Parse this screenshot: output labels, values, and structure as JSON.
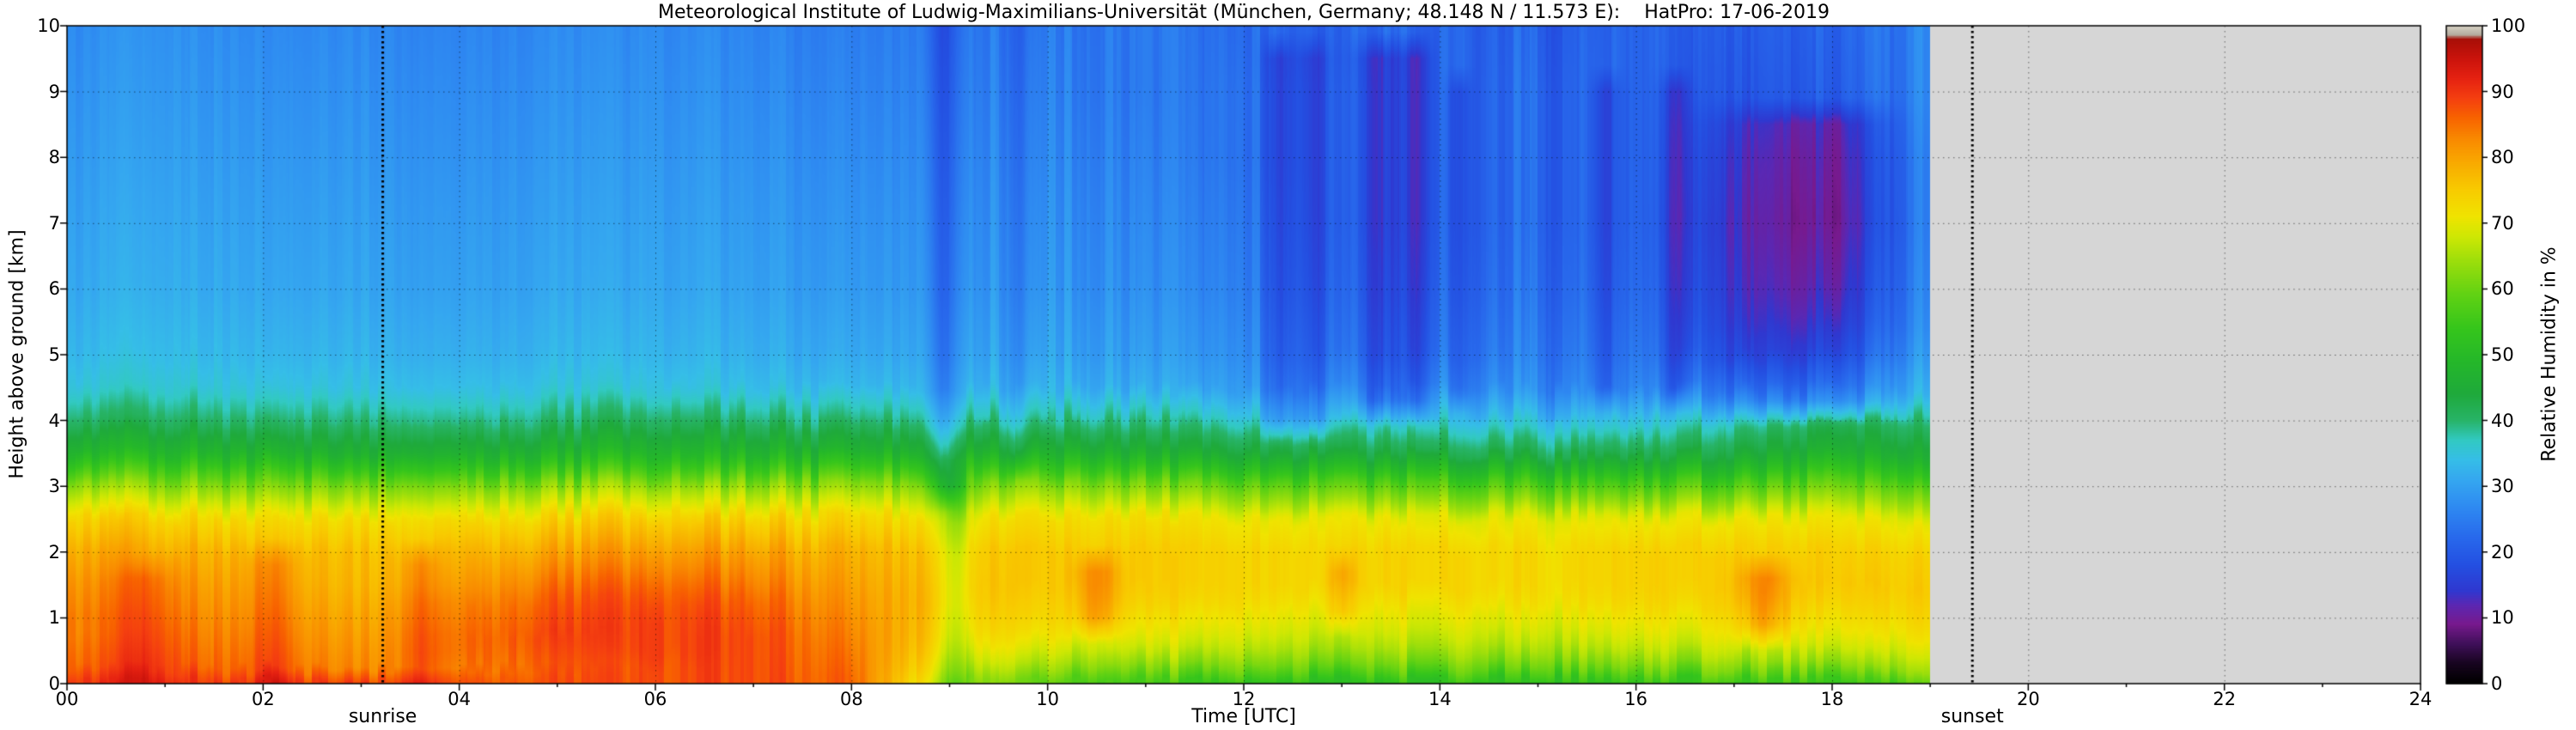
{
  "chart_data": {
    "type": "heatmap",
    "title": "Meteorological Institute of Ludwig-Maximilians-Universität (München, Germany; 48.148 N / 11.573 E):    HatPro: 17-06-2019",
    "xlabel": "Time [UTC]",
    "ylabel": "Height above ground [km]",
    "colorbar_label": "Relative Humidity in %",
    "x_range": [
      0,
      24
    ],
    "y_range": [
      0,
      10
    ],
    "grid": true,
    "x_tick_values": [
      0,
      2,
      4,
      6,
      8,
      10,
      12,
      14,
      16,
      18,
      20,
      22,
      24
    ],
    "x_tick_labels": [
      "00",
      "02",
      "04",
      "06",
      "08",
      "10",
      "12",
      "14",
      "16",
      "18",
      "20",
      "22",
      "24"
    ],
    "y_tick_values": [
      0,
      1,
      2,
      3,
      4,
      5,
      6,
      7,
      8,
      9,
      10
    ],
    "y_tick_labels": [
      "0",
      "1",
      "2",
      "3",
      "4",
      "5",
      "6",
      "7",
      "8",
      "9",
      "10"
    ],
    "colorbar_tick_values": [
      0,
      10,
      20,
      30,
      40,
      50,
      60,
      70,
      80,
      90,
      100
    ],
    "annotations": {
      "sunrise": {
        "time_utc": 3.22,
        "label": "sunrise"
      },
      "sunset": {
        "time_utc": 19.43,
        "label": "sunset"
      }
    },
    "data_end_time_utc": 19.0,
    "no_data_color": "#d6d6d6",
    "colormap_stops": [
      [
        0,
        "#000000"
      ],
      [
        3,
        "#180520"
      ],
      [
        6,
        "#40105a"
      ],
      [
        9,
        "#781a8e"
      ],
      [
        12,
        "#5a28b4"
      ],
      [
        14,
        "#3038d0"
      ],
      [
        18,
        "#2450e2"
      ],
      [
        22,
        "#2868ec"
      ],
      [
        27,
        "#2f8cf2"
      ],
      [
        31,
        "#35a8f0"
      ],
      [
        34,
        "#36bee8"
      ],
      [
        37,
        "#32cac2"
      ],
      [
        40,
        "#28b468"
      ],
      [
        44,
        "#1faa3c"
      ],
      [
        49,
        "#25b82a"
      ],
      [
        54,
        "#36c61c"
      ],
      [
        59,
        "#60d214"
      ],
      [
        64,
        "#9ade0c"
      ],
      [
        68,
        "#cfe804"
      ],
      [
        71,
        "#f0e400"
      ],
      [
        75,
        "#f8cc00"
      ],
      [
        79,
        "#f9ac00"
      ],
      [
        83,
        "#f98800"
      ],
      [
        86,
        "#f86400"
      ],
      [
        89,
        "#f54010"
      ],
      [
        92,
        "#e62212"
      ],
      [
        95,
        "#cc140c"
      ],
      [
        98,
        "#a80f08"
      ],
      [
        98.7,
        "#b4ac9e"
      ],
      [
        100,
        "#d8d2c6"
      ]
    ],
    "times_utc": [
      0,
      1,
      2,
      3,
      4,
      5,
      6,
      7,
      8,
      9,
      10,
      11,
      12,
      13,
      14,
      15,
      16,
      17,
      18,
      19
    ],
    "heights_km": [
      0,
      0.25,
      0.5,
      0.75,
      1,
      1.25,
      1.5,
      2,
      2.5,
      3,
      3.25,
      3.5,
      4,
      4.5,
      5,
      5.5,
      6,
      7,
      8,
      9,
      10
    ],
    "rh_percent": [
      [
        90,
        90,
        90,
        90,
        88,
        88,
        88,
        88,
        86,
        66,
        58,
        55,
        53,
        52,
        52,
        52,
        53,
        54,
        55,
        56
      ],
      [
        86,
        87,
        85,
        83,
        84,
        87,
        88,
        88,
        85,
        70,
        64,
        62,
        61,
        60,
        60,
        60,
        61,
        62,
        63,
        64
      ],
      [
        85,
        86,
        84,
        82,
        85,
        88,
        89,
        88,
        84,
        73,
        68,
        67,
        66,
        65,
        65,
        65,
        66,
        67,
        68,
        68
      ],
      [
        84,
        85,
        83,
        81,
        85,
        89,
        89,
        88,
        83,
        75,
        71,
        70,
        69,
        68,
        68,
        68,
        69,
        70,
        71,
        71
      ],
      [
        84,
        84,
        82,
        80,
        84,
        88,
        89,
        87,
        82,
        76,
        73,
        72,
        71,
        70,
        70,
        70,
        71,
        72,
        73,
        73
      ],
      [
        83,
        83,
        81,
        79,
        83,
        87,
        88,
        86,
        81,
        77,
        74,
        74,
        73,
        72,
        72,
        72,
        73,
        74,
        75,
        74
      ],
      [
        82,
        82,
        80,
        78,
        81,
        85,
        86,
        84,
        80,
        77,
        75,
        75,
        74,
        74,
        74,
        73,
        74,
        75,
        76,
        75
      ],
      [
        79,
        79,
        78,
        77,
        78,
        80,
        81,
        80,
        78,
        76,
        75,
        75,
        74,
        74,
        74,
        73,
        74,
        75,
        75,
        74
      ],
      [
        74,
        74,
        73,
        73,
        73,
        74,
        75,
        74,
        73,
        72,
        72,
        72,
        71,
        71,
        70,
        70,
        70,
        71,
        71,
        70
      ],
      [
        63,
        63,
        62,
        62,
        62,
        63,
        64,
        63,
        62,
        62,
        62,
        61,
        60,
        59,
        58,
        57,
        57,
        58,
        60,
        59
      ],
      [
        55,
        56,
        55,
        54,
        54,
        55,
        56,
        55,
        54,
        54,
        54,
        53,
        52,
        51,
        50,
        49,
        49,
        50,
        53,
        52
      ],
      [
        48,
        49,
        48,
        47,
        47,
        48,
        49,
        48,
        47,
        47,
        47,
        46,
        45,
        44,
        43,
        42,
        42,
        44,
        47,
        46
      ],
      [
        40,
        41,
        40,
        40,
        39,
        40,
        41,
        40,
        39,
        39,
        38,
        38,
        37,
        36,
        35,
        34,
        34,
        37,
        41,
        40
      ],
      [
        35,
        36,
        35,
        35,
        34,
        35,
        35,
        34,
        33,
        33,
        32,
        31,
        30,
        29,
        28,
        27,
        26,
        26,
        31,
        32
      ],
      [
        33,
        34,
        33,
        33,
        32,
        33,
        33,
        32,
        31,
        31,
        30,
        29,
        28,
        26,
        25,
        25,
        24,
        20,
        25,
        29
      ],
      [
        32,
        33,
        32,
        32,
        31,
        32,
        32,
        31,
        30,
        30,
        29,
        28,
        27,
        25,
        24,
        24,
        23,
        18,
        22,
        27
      ],
      [
        31,
        32,
        31,
        31,
        30,
        31,
        31,
        30,
        29,
        29,
        28,
        27,
        26,
        24,
        23,
        23,
        22,
        17,
        20,
        26
      ],
      [
        30,
        31,
        30,
        30,
        29,
        30,
        30,
        29,
        28,
        28,
        27,
        26,
        25,
        23,
        22,
        22,
        21,
        16,
        18,
        25
      ],
      [
        29,
        30,
        29,
        29,
        28,
        29,
        29,
        28,
        27,
        27,
        26,
        25,
        24,
        23,
        22,
        22,
        21,
        17,
        19,
        25
      ],
      [
        28,
        29,
        28,
        28,
        27,
        28,
        28,
        27,
        26,
        26,
        25,
        24,
        24,
        23,
        22,
        22,
        21,
        19,
        21,
        26
      ],
      [
        27,
        28,
        27,
        27,
        26,
        27,
        27,
        26,
        25,
        25,
        24,
        24,
        23,
        22,
        22,
        21,
        21,
        20,
        22,
        26
      ]
    ],
    "streak_anomalies": [
      {
        "t": 8.95,
        "w": 0.1,
        "hmin": 3.0,
        "hmax": 10.0,
        "dv": -8
      },
      {
        "t": 9.05,
        "w": 0.12,
        "hmin": 0.0,
        "hmax": 3.0,
        "dv": -9
      },
      {
        "t": 9.7,
        "w": 0.08,
        "hmin": 3.5,
        "hmax": 10.0,
        "dv": -5
      },
      {
        "t": 12.35,
        "w": 0.1,
        "hmin": 4.0,
        "hmax": 9.5,
        "dv": -7
      },
      {
        "t": 12.7,
        "w": 0.12,
        "hmin": 4.0,
        "hmax": 9.5,
        "dv": -6
      },
      {
        "t": 13.4,
        "w": 0.18,
        "hmin": 4.3,
        "hmax": 9.5,
        "dv": -8
      },
      {
        "t": 13.75,
        "w": 0.1,
        "hmin": 4.3,
        "hmax": 9.5,
        "dv": -7
      },
      {
        "t": 14.2,
        "w": 0.08,
        "hmin": 4.5,
        "hmax": 9.0,
        "dv": -5
      },
      {
        "t": 15.7,
        "w": 0.1,
        "hmin": 4.5,
        "hmax": 9.0,
        "dv": -5
      },
      {
        "t": 16.4,
        "w": 0.1,
        "hmin": 4.5,
        "hmax": 9.0,
        "dv": -6
      },
      {
        "t": 17.5,
        "w": 0.45,
        "hmin": 4.3,
        "hmax": 8.5,
        "dv": -6
      },
      {
        "t": 18.15,
        "w": 0.3,
        "hmin": 4.3,
        "hmax": 8.5,
        "dv": -5
      },
      {
        "t": 10.5,
        "w": 0.15,
        "hmin": 1.0,
        "hmax": 1.7,
        "dv": 8
      },
      {
        "t": 13.0,
        "w": 0.1,
        "hmin": 1.1,
        "hmax": 1.7,
        "dv": 6
      },
      {
        "t": 17.3,
        "w": 0.18,
        "hmin": 0.9,
        "hmax": 1.6,
        "dv": 8
      },
      {
        "t": 2.1,
        "w": 0.15,
        "hmin": 0.0,
        "hmax": 1.8,
        "dv": 5
      },
      {
        "t": 3.6,
        "w": 0.12,
        "hmin": 0.0,
        "hmax": 1.8,
        "dv": 5
      },
      {
        "t": 0.8,
        "w": 0.2,
        "hmin": 0.0,
        "hmax": 1.6,
        "dv": 4
      }
    ]
  }
}
